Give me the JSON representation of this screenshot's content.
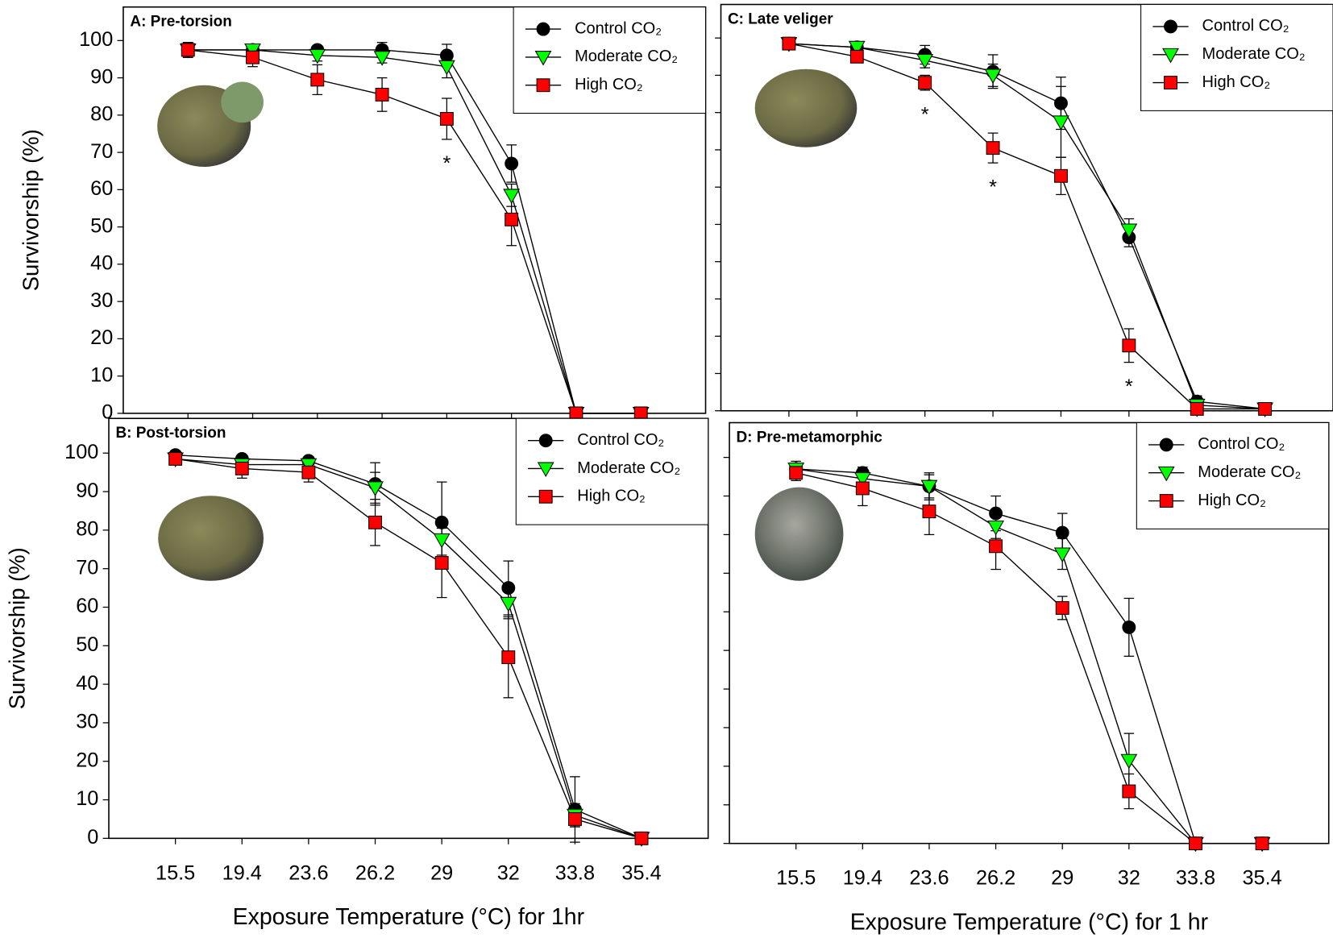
{
  "chart_data": [
    {
      "type": "line",
      "title": "A: Pre-torsion",
      "ylabel": "Survivorship (%)",
      "categories": [
        null,
        null,
        null,
        null,
        null,
        null,
        null,
        null
      ],
      "ylim": [
        0,
        109
      ],
      "yticks": [
        0,
        10,
        20,
        30,
        40,
        50,
        60,
        70,
        80,
        90,
        100
      ],
      "show_ytick_labels": true,
      "legend": "upper right",
      "series": [
        {
          "name": "Control CO₂",
          "color": "#000000",
          "marker": "circle",
          "values": [
            97.5,
            97.5,
            97.5,
            97.5,
            96,
            67,
            0,
            0
          ],
          "errors": [
            2,
            1,
            1,
            2,
            3,
            5,
            0,
            0
          ]
        },
        {
          "name": "Moderate CO₂",
          "color": "#00ff00",
          "marker": "triangle-down",
          "values": [
            97.5,
            97.5,
            96,
            95.5,
            93,
            58.5,
            0,
            0
          ],
          "errors": [
            2,
            1,
            1.5,
            1.5,
            3,
            3,
            0,
            0
          ]
        },
        {
          "name": "High CO₂",
          "color": "#ff0000",
          "marker": "square",
          "values": [
            97.5,
            95.5,
            89.5,
            85.5,
            79,
            52,
            0,
            0
          ],
          "errors": [
            2,
            2.5,
            4,
            4.5,
            5.5,
            7,
            0,
            0
          ]
        }
      ],
      "annotations": [
        {
          "text": "*",
          "index": 4
        }
      ]
    },
    {
      "type": "line",
      "title": "B: Post-torsion",
      "ylabel": "Survivorship (%)",
      "xlabel": "Exposure Temperature (°C) for 1hr",
      "categories": [
        "15.5",
        "19.4",
        "23.6",
        "26.2",
        "29",
        "32",
        "33.8",
        "35.4"
      ],
      "ylim": [
        0,
        109
      ],
      "yticks": [
        0,
        10,
        20,
        30,
        40,
        50,
        60,
        70,
        80,
        90,
        100
      ],
      "show_ytick_labels": true,
      "legend": "upper right",
      "series": [
        {
          "name": "Control CO₂",
          "color": "#000000",
          "marker": "circle",
          "values": [
            99.5,
            98.5,
            98,
            92,
            82,
            65,
            7.5,
            0
          ],
          "errors": [
            1,
            1,
            1,
            5.5,
            10.5,
            7,
            8.5,
            0
          ]
        },
        {
          "name": "Moderate CO₂",
          "color": "#00ff00",
          "marker": "triangle-down",
          "values": [
            98.5,
            97,
            97,
            91,
            77.5,
            61,
            6,
            0
          ],
          "errors": [
            1,
            1.5,
            1.5,
            4,
            4,
            4,
            3,
            0
          ]
        },
        {
          "name": "High CO₂",
          "color": "#ff0000",
          "marker": "square",
          "values": [
            98.5,
            96,
            95,
            82,
            71.5,
            47,
            5,
            0
          ],
          "errors": [
            1,
            2.5,
            2.5,
            6,
            9,
            10.5,
            2,
            0
          ]
        }
      ],
      "annotations": []
    },
    {
      "type": "line",
      "title": "C: Late veliger",
      "categories": [
        null,
        null,
        null,
        null,
        null,
        null,
        null,
        null
      ],
      "ylim": [
        0,
        109
      ],
      "yticks": [
        0,
        10,
        20,
        30,
        40,
        50,
        60,
        70,
        80,
        90,
        100
      ],
      "show_ytick_labels": false,
      "legend": "upper right",
      "series": [
        {
          "name": "Control CO₂",
          "color": "#000000",
          "marker": "circle",
          "values": [
            98.5,
            97.5,
            95.5,
            91,
            82.5,
            46.5,
            2.5,
            0.5
          ],
          "errors": [
            1,
            1,
            2.5,
            4.5,
            7,
            2.5,
            1.5,
            0.5
          ]
        },
        {
          "name": "Moderate CO₂",
          "color": "#00ff00",
          "marker": "triangle-down",
          "values": [
            98.5,
            97.5,
            94,
            90,
            77.5,
            48.5,
            1.5,
            0.5
          ],
          "errors": [
            1,
            1,
            2,
            3,
            9.5,
            3,
            1,
            0.5
          ]
        },
        {
          "name": "High CO₂",
          "color": "#ff0000",
          "marker": "square",
          "values": [
            98.5,
            95,
            88,
            70.5,
            63,
            17.5,
            0.5,
            0.5
          ],
          "errors": [
            1,
            1,
            2,
            4,
            5,
            4.5,
            0.5,
            0.5
          ]
        }
      ],
      "annotations": [
        {
          "text": "*",
          "index": 2
        },
        {
          "text": "*",
          "index": 3
        },
        {
          "text": "*",
          "index": 5
        }
      ]
    },
    {
      "type": "line",
      "title": "D: Pre-metamorphic",
      "xlabel": "Exposure Temperature (°C) for 1 hr",
      "categories": [
        "15.5",
        "19.4",
        "23.6",
        "26.2",
        "29",
        "32",
        "33.8",
        "35.4"
      ],
      "ylim": [
        0,
        109
      ],
      "yticks": [
        0,
        10,
        20,
        30,
        40,
        50,
        60,
        70,
        80,
        90,
        100
      ],
      "show_ytick_labels": false,
      "legend": "upper right",
      "series": [
        {
          "name": "Control CO₂",
          "color": "#000000",
          "marker": "circle",
          "values": [
            97,
            96,
            92.5,
            85.5,
            80.5,
            56,
            0,
            0
          ],
          "errors": [
            2,
            1.5,
            3.5,
            4.5,
            5,
            7.5,
            0,
            0
          ]
        },
        {
          "name": "Moderate CO₂",
          "color": "#00ff00",
          "marker": "triangle-down",
          "values": [
            97,
            94.5,
            92.5,
            82,
            75,
            21.5,
            0,
            0
          ],
          "errors": [
            1.5,
            1.5,
            3,
            3,
            4,
            7,
            0,
            0
          ]
        },
        {
          "name": "High CO₂",
          "color": "#ff0000",
          "marker": "square",
          "values": [
            96,
            92,
            86,
            77,
            61,
            13.5,
            0,
            0
          ],
          "errors": [
            2,
            4.5,
            6,
            6,
            3,
            4.5,
            0,
            0
          ]
        }
      ],
      "annotations": []
    }
  ]
}
